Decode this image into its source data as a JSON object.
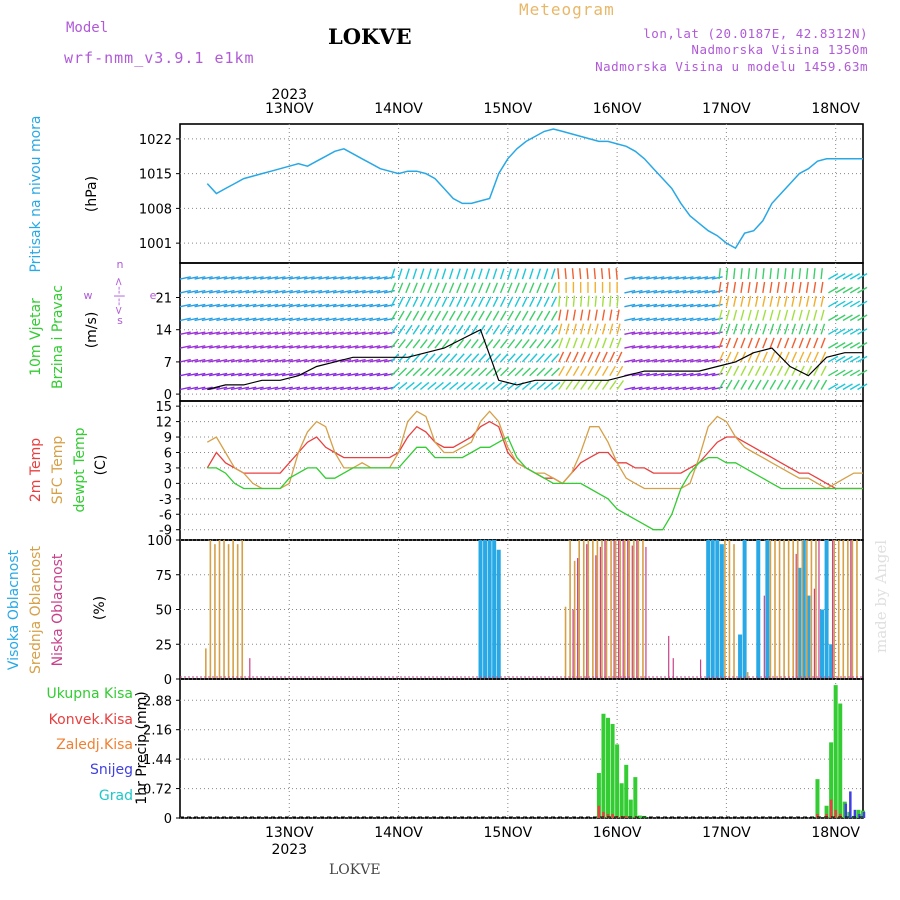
{
  "header": {
    "model_label": "Model",
    "model_name": "wrf-nmm_v3.9.1 e1km",
    "title": "LOKVE",
    "meteogram_label": "Meteogram",
    "lonlat": "lon,lat (20.0187E, 42.8312N)",
    "altitude": "Nadmorska Visina 1350m",
    "model_altitude": "Nadmorska Visina u modelu 1459.63m"
  },
  "footer": {
    "station": "LOKVE",
    "watermark": "made by Angel"
  },
  "chart_data": [
    {
      "type": "line",
      "panel": "pressure",
      "ylabel_left": "Pritisak na nivou mora",
      "unit": "(hPa)",
      "yticks": [
        1001,
        1008,
        1015,
        1022
      ],
      "ylim": [
        997,
        1025
      ],
      "x_ticks": [
        "13NOV",
        "14NOV",
        "15NOV",
        "16NOV",
        "17NOV",
        "18NOV"
      ],
      "x_year": "2023",
      "x": [
        0,
        2,
        4,
        6,
        8,
        10,
        12,
        14,
        16,
        18,
        20,
        22,
        24,
        26,
        28,
        30,
        32,
        34,
        36,
        38,
        40,
        42,
        44,
        46,
        48,
        50,
        52,
        54,
        56,
        58,
        60,
        62,
        64,
        66,
        68,
        70,
        72,
        74,
        76,
        78,
        80,
        82,
        84,
        86,
        88,
        90,
        92,
        94,
        96,
        98,
        100,
        102,
        104,
        106,
        108,
        110,
        112,
        114,
        116,
        118,
        120,
        122,
        124,
        126,
        128,
        130,
        132,
        134,
        136,
        138,
        140,
        142,
        144
      ],
      "series": [
        {
          "name": "",
          "color": "#29a8e6",
          "values": [
            1013,
            1011,
            1012,
            1013,
            1014,
            1014.5,
            1015,
            1015.5,
            1016,
            1016.5,
            1017,
            1016.5,
            1017.5,
            1018.5,
            1019.5,
            1020,
            1019,
            1018,
            1017,
            1016,
            1015.5,
            1015,
            1015.5,
            1015.5,
            1015,
            1014,
            1012,
            1010,
            1009,
            1009,
            1009.5,
            1010,
            1015,
            1018,
            1020,
            1021.5,
            1022.5,
            1023.5,
            1024,
            1023.5,
            1023,
            1022.5,
            1022,
            1021.5,
            1021.5,
            1021,
            1020.5,
            1019.5,
            1018,
            1016,
            1014,
            1012,
            1009,
            1006.5,
            1005,
            1003.5,
            1002.5,
            1001,
            1000,
            1003,
            1003.5,
            1005.5,
            1009,
            1011,
            1013,
            1015,
            1016,
            1017.5,
            1018,
            1018,
            1018,
            1018,
            1018
          ]
        }
      ]
    },
    {
      "type": "line",
      "panel": "wind",
      "ylabel_left1": "10m Vjetar",
      "ylabel_left2": "Brzina i Pravac",
      "unit": "(m/s)",
      "legend_w": "w",
      "legend_compass": "<--|-->",
      "legend_n": "n",
      "legend_s": "s",
      "legend_e": "e",
      "yticks": [
        0,
        7,
        14,
        21
      ],
      "ylim": [
        -1.5,
        28.5
      ],
      "x": [
        0,
        4,
        8,
        12,
        16,
        20,
        24,
        28,
        32,
        36,
        40,
        44,
        48,
        52,
        56,
        60,
        64,
        68,
        72,
        76,
        80,
        84,
        88,
        92,
        96,
        100,
        104,
        108,
        112,
        116,
        120,
        124,
        128,
        132,
        136,
        140,
        144
      ],
      "series": [
        {
          "name": "",
          "color": "#000000",
          "values": [
            1,
            2,
            2,
            3,
            3,
            4,
            6,
            7,
            8,
            8,
            8,
            8,
            9,
            10,
            12,
            14,
            3,
            2,
            3,
            3,
            3,
            3,
            3,
            4,
            5,
            5,
            5,
            5,
            6,
            7,
            9,
            10,
            6,
            4,
            8,
            9,
            9
          ]
        }
      ]
    },
    {
      "type": "line",
      "panel": "temperature",
      "ylabel_2m": "2m Temp",
      "ylabel_sfc": "SFC Temp",
      "ylabel_dew": "dewpt Temp",
      "unit": "(C)",
      "yticks": [
        -9,
        -6,
        -3,
        0,
        3,
        6,
        9,
        12,
        15
      ],
      "ylim": [
        -11,
        16
      ],
      "x": [
        0,
        2,
        4,
        6,
        8,
        10,
        12,
        14,
        16,
        18,
        20,
        22,
        24,
        26,
        28,
        30,
        32,
        34,
        36,
        38,
        40,
        42,
        44,
        46,
        48,
        50,
        52,
        54,
        56,
        58,
        60,
        62,
        64,
        66,
        68,
        70,
        72,
        74,
        76,
        78,
        80,
        82,
        84,
        86,
        88,
        90,
        92,
        94,
        96,
        98,
        100,
        102,
        104,
        106,
        108,
        110,
        112,
        114,
        116,
        118,
        120,
        122,
        124,
        126,
        128,
        130,
        132,
        134,
        136,
        138,
        140,
        142,
        144
      ],
      "series": [
        {
          "name": "2m Temp",
          "color": "#e84040",
          "values": [
            3,
            6,
            4,
            3,
            2,
            2,
            2,
            2,
            2,
            4,
            6,
            8,
            9,
            7,
            6,
            5,
            5,
            5,
            5,
            5,
            5,
            6,
            9,
            11,
            10,
            8,
            7,
            7,
            8,
            9,
            11,
            12,
            11,
            6,
            4,
            3,
            2,
            1,
            1,
            0,
            2,
            4,
            5,
            6,
            6,
            4,
            4,
            3,
            3,
            2,
            2,
            2,
            2,
            3,
            4,
            6,
            8,
            9,
            9,
            8,
            7,
            6,
            5,
            4,
            3,
            2,
            2,
            1,
            0,
            -1,
            -1,
            -1,
            -1
          ]
        },
        {
          "name": "SFC Temp",
          "color": "#d6a048",
          "values": [
            8,
            9,
            6,
            3,
            2,
            0,
            -1,
            -1,
            -1,
            0,
            6,
            10,
            12,
            11,
            6,
            3,
            3,
            4,
            3,
            3,
            3,
            6,
            12,
            14,
            13,
            8,
            6,
            6,
            7,
            8,
            12,
            14,
            12,
            7,
            4,
            3,
            2,
            2,
            1,
            0,
            2,
            6,
            11,
            11,
            8,
            4,
            1,
            0,
            -1,
            -1,
            -1,
            -1,
            -1,
            0,
            5,
            11,
            13,
            12,
            9,
            7,
            6,
            5,
            4,
            3,
            2,
            1,
            1,
            0,
            -1,
            0,
            1,
            2,
            2
          ]
        },
        {
          "name": "dewpt Temp",
          "color": "#33cc33",
          "values": [
            3,
            3,
            2,
            0,
            -1,
            -1,
            -1,
            -1,
            -1,
            1,
            2,
            3,
            3,
            1,
            1,
            2,
            3,
            3,
            3,
            3,
            3,
            3,
            5,
            7,
            7,
            5,
            5,
            5,
            5,
            6,
            7,
            7,
            8,
            9,
            5,
            3,
            2,
            1,
            0,
            0,
            0,
            0,
            -1,
            -2,
            -3,
            -5,
            -6,
            -7,
            -8,
            -9,
            -9,
            -6,
            -1,
            2,
            4,
            5,
            5,
            4,
            4,
            3,
            2,
            1,
            0,
            -1,
            -1,
            -1,
            -1,
            -1,
            -1,
            -1,
            -1,
            -1,
            -1
          ]
        }
      ]
    },
    {
      "type": "bar",
      "panel": "cloud",
      "ylabel_high": "Visoka Oblacnost",
      "ylabel_mid": "Srednja Oblacnost",
      "ylabel_low": "Niska Oblacnost",
      "unit": "(%)",
      "yticks": [
        0,
        25,
        50,
        75,
        100
      ],
      "ylim": [
        0,
        100
      ],
      "series": [
        {
          "name": "Visoka Oblacnost",
          "color": "#29a8e6",
          "x": [
            60,
            61,
            62,
            63,
            64,
            110,
            111,
            112,
            113,
            117,
            118,
            121,
            123,
            130,
            131,
            132,
            135,
            136,
            137
          ],
          "values": [
            100,
            100,
            100,
            100,
            93,
            100,
            100,
            100,
            97,
            32,
            100,
            100,
            100,
            80,
            100,
            60,
            50,
            100,
            25
          ]
        },
        {
          "name": "Srednja Oblacnost",
          "color": "#d6a048",
          "x": [
            0,
            1,
            2,
            3,
            4,
            5,
            6,
            7,
            8,
            9,
            10,
            11,
            12,
            13,
            79,
            80,
            81,
            82,
            83,
            84,
            85,
            86,
            87,
            88,
            89,
            90,
            91,
            92,
            93,
            94,
            95,
            96,
            114,
            115,
            116,
            119,
            124,
            125,
            126,
            127,
            128,
            129,
            130,
            131,
            132,
            133,
            134,
            138,
            139,
            140,
            141,
            142,
            143
          ],
          "values": [
            22,
            100,
            97,
            100,
            100,
            97,
            100,
            97,
            100,
            0,
            0,
            0,
            0,
            0,
            52,
            100,
            85,
            100,
            100,
            100,
            100,
            100,
            100,
            100,
            100,
            100,
            100,
            100,
            100,
            100,
            100,
            100,
            100,
            100,
            97,
            5,
            100,
            100,
            100,
            100,
            100,
            100,
            100,
            100,
            100,
            100,
            100,
            100,
            100,
            100,
            100,
            100,
            100
          ]
        },
        {
          "name": "Niska Oblacnost",
          "color": "#c8408a",
          "x": [
            9,
            80,
            81,
            83,
            85,
            86,
            87,
            89,
            90,
            91,
            92,
            93,
            94,
            96,
            101,
            102,
            108,
            122,
            129,
            133,
            134,
            137,
            141
          ],
          "values": [
            15,
            50,
            87,
            97,
            89,
            95,
            100,
            100,
            100,
            100,
            100,
            96,
            100,
            95,
            31,
            15,
            14,
            60,
            90,
            65,
            100,
            100,
            100
          ]
        }
      ]
    },
    {
      "type": "bar",
      "panel": "precip",
      "ylabel_total": "Ukupna Kisa",
      "ylabel_conv": "Konvek.Kisa",
      "ylabel_frz": "Zaledj.Kisa",
      "ylabel_snow": "Snijeg",
      "ylabel_grad": "Grad",
      "unit": "1hr Precip (mm)",
      "yticks": [
        0,
        0.72,
        1.44,
        2.16,
        2.88
      ],
      "ylim": [
        0,
        3.4
      ],
      "x": [
        85,
        86,
        87,
        88,
        89,
        90,
        91,
        92,
        93,
        94,
        95,
        96,
        134,
        135,
        136,
        137,
        138,
        139,
        140,
        141,
        142,
        143,
        144
      ],
      "series": [
        {
          "name": "Ukupna Kisa",
          "color": "#33cc33",
          "values": [
            0,
            1.1,
            2.55,
            2.45,
            2.3,
            1.8,
            0.85,
            1.3,
            0.45,
            1.0,
            0.06,
            0.05,
            0.95,
            0,
            0.3,
            1.85,
            3.25,
            2.8,
            0.4,
            0.15,
            0.05,
            0.2,
            0.18
          ]
        },
        {
          "name": "Konvek.Kisa",
          "color": "#e84040",
          "values": [
            0,
            0.3,
            0.15,
            0.1,
            0.1,
            0.05,
            0.05,
            0.05,
            0,
            0.03,
            0,
            0,
            0.1,
            0,
            0.1,
            0.45,
            0.2,
            0.1,
            0,
            0,
            0,
            0,
            0
          ]
        },
        {
          "name": "Snijeg",
          "color": "#4040e0",
          "values": [
            0,
            0,
            0,
            0,
            0,
            0,
            0,
            0,
            0,
            0,
            0,
            0,
            0,
            0,
            0,
            0,
            0,
            0,
            0.35,
            0.65,
            0.2,
            0.1,
            0.15
          ]
        }
      ]
    }
  ]
}
